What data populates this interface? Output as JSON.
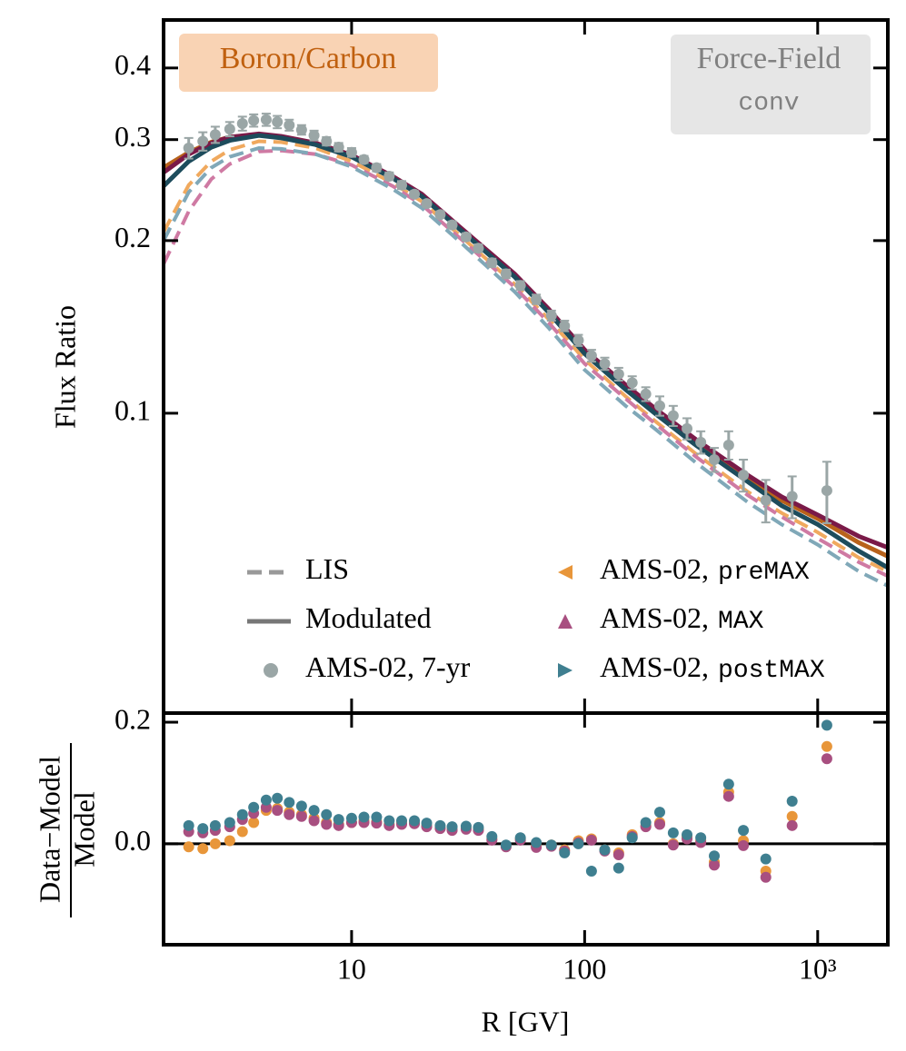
{
  "chart_data": {
    "type": "line",
    "annotations": {
      "label": "Boron/Carbon",
      "model": "Force-Field",
      "model_code": "conv"
    },
    "xlabel": "R [GV]",
    "ylabel": "Flux Ratio",
    "residual_ylabel": {
      "numerator": "Data−Model",
      "denominator": "Model"
    },
    "xscale": "log",
    "xlim": [
      1.56,
      2000
    ],
    "xticks": [
      10,
      100,
      {
        "value": 1000,
        "label": "10³"
      }
    ],
    "yscale": "log",
    "ylim": [
      0.03,
      0.485
    ],
    "yticks": [
      0.1,
      0.2,
      0.3,
      0.4
    ],
    "residual_ylim": [
      -0.166,
      0.215
    ],
    "residual_yticks": [
      {
        "value": 0,
        "label": "0.0"
      },
      {
        "value": 0.2,
        "label": "0.2"
      }
    ],
    "model_x": [
      1.56,
      2,
      2.5,
      3,
      4,
      5,
      7,
      10,
      15,
      20,
      30,
      50,
      70,
      100,
      150,
      200,
      300,
      500,
      700,
      1000,
      1500,
      2000
    ],
    "models": [
      {
        "style": "dashed",
        "color": "#f0a95e",
        "values": [
          0.207,
          0.25,
          0.275,
          0.288,
          0.298,
          0.297,
          0.29,
          0.275,
          0.252,
          0.234,
          0.202,
          0.168,
          0.146,
          0.124,
          0.107,
          0.097,
          0.085,
          0.073,
          0.067,
          0.062,
          0.056,
          0.053
        ]
      },
      {
        "style": "dashed",
        "color": "#cf7aa3",
        "values": [
          0.182,
          0.225,
          0.256,
          0.272,
          0.286,
          0.287,
          0.283,
          0.271,
          0.249,
          0.231,
          0.2,
          0.166,
          0.144,
          0.122,
          0.106,
          0.096,
          0.084,
          0.072,
          0.066,
          0.0605,
          0.055,
          0.052
        ]
      },
      {
        "style": "dashed",
        "color": "#80a8b8",
        "values": [
          0.2,
          0.243,
          0.268,
          0.28,
          0.29,
          0.289,
          0.283,
          0.269,
          0.246,
          0.228,
          0.197,
          0.163,
          0.141,
          0.119,
          0.103,
          0.094,
          0.082,
          0.07,
          0.064,
          0.059,
          0.053,
          0.05
        ]
      },
      {
        "style": "solid",
        "color": "#b8621b",
        "values": [
          0.268,
          0.285,
          0.297,
          0.303,
          0.306,
          0.303,
          0.295,
          0.281,
          0.258,
          0.24,
          0.208,
          0.174,
          0.151,
          0.128,
          0.111,
          0.101,
          0.089,
          0.077,
          0.0705,
          0.0655,
          0.0595,
          0.0563
        ]
      },
      {
        "style": "solid",
        "color": "#7a1a48",
        "values": [
          0.263,
          0.283,
          0.296,
          0.303,
          0.307,
          0.304,
          0.296,
          0.282,
          0.259,
          0.241,
          0.209,
          0.175,
          0.152,
          0.129,
          0.112,
          0.102,
          0.09,
          0.078,
          0.0715,
          0.0665,
          0.061,
          0.0583
        ]
      },
      {
        "style": "solid",
        "color": "#1d4c5c",
        "values": [
          0.249,
          0.275,
          0.291,
          0.299,
          0.305,
          0.302,
          0.294,
          0.28,
          0.257,
          0.239,
          0.207,
          0.173,
          0.15,
          0.127,
          0.11,
          0.1,
          0.088,
          0.076,
          0.069,
          0.064,
          0.0575,
          0.0538
        ]
      }
    ],
    "data": {
      "color": "#9aa6a6",
      "x": [
        2.0,
        2.3,
        2.6,
        3.0,
        3.4,
        3.8,
        4.3,
        4.8,
        5.4,
        6.1,
        6.9,
        7.8,
        8.8,
        10,
        11.3,
        12.8,
        14.5,
        16.4,
        18.6,
        21,
        24,
        27,
        31,
        35,
        40,
        46,
        53,
        62,
        72,
        82,
        94,
        107,
        122,
        140,
        160,
        183,
        210,
        240,
        275,
        315,
        360,
        415,
        480,
        599,
        777,
        1095
      ],
      "values": [
        0.29,
        0.298,
        0.306,
        0.313,
        0.32,
        0.324,
        0.325,
        0.322,
        0.318,
        0.312,
        0.305,
        0.298,
        0.291,
        0.285,
        0.277,
        0.268,
        0.259,
        0.25,
        0.241,
        0.232,
        0.222,
        0.213,
        0.203,
        0.194,
        0.183,
        0.175,
        0.167,
        0.158,
        0.148,
        0.142,
        0.134,
        0.126,
        0.122,
        0.117,
        0.113,
        0.108,
        0.103,
        0.099,
        0.094,
        0.089,
        0.083,
        0.088,
        0.078,
        0.0705,
        0.0716,
        0.0733
      ],
      "errors": [
        0.012,
        0.011,
        0.01,
        0.009,
        0.009,
        0.008,
        0.008,
        0.008,
        0.007,
        0.006,
        0.006,
        0.005,
        0.005,
        0.005,
        0.004,
        0.004,
        0.004,
        0.004,
        0.003,
        0.003,
        0.003,
        0.003,
        0.003,
        0.003,
        0.003,
        0.003,
        0.003,
        0.003,
        0.003,
        0.003,
        0.003,
        0.003,
        0.003,
        0.003,
        0.003,
        0.003,
        0.004,
        0.004,
        0.004,
        0.004,
        0.004,
        0.005,
        0.005,
        0.006,
        0.006,
        0.009
      ]
    },
    "residuals": [
      {
        "color": "#e8963a",
        "values": [
          -0.005,
          -0.008,
          0.0,
          0.005,
          0.02,
          0.035,
          0.055,
          0.058,
          0.052,
          0.048,
          0.042,
          0.035,
          0.032,
          0.035,
          0.038,
          0.036,
          0.032,
          0.035,
          0.036,
          0.03,
          0.026,
          0.024,
          0.026,
          0.024,
          0.008,
          -0.004,
          0.008,
          -0.004,
          -0.002,
          -0.01,
          0.005,
          0.008,
          -0.01,
          -0.015,
          0.015,
          0.03,
          0.035,
          0.0,
          0.012,
          0.005,
          -0.03,
          0.085,
          0.005,
          -0.045,
          0.045,
          0.16
        ]
      },
      {
        "color": "#a84f80",
        "values": [
          0.02,
          0.018,
          0.022,
          0.028,
          0.04,
          0.05,
          0.06,
          0.055,
          0.048,
          0.045,
          0.038,
          0.032,
          0.03,
          0.035,
          0.035,
          0.034,
          0.03,
          0.032,
          0.033,
          0.028,
          0.025,
          0.022,
          0.024,
          0.022,
          0.006,
          -0.005,
          0.006,
          -0.006,
          -0.004,
          -0.012,
          0.002,
          0.006,
          -0.012,
          -0.018,
          0.012,
          0.028,
          0.032,
          -0.002,
          0.008,
          0.002,
          -0.035,
          0.078,
          -0.003,
          -0.055,
          0.03,
          0.14
        ]
      },
      {
        "color": "#3f7f90",
        "values": [
          0.03,
          0.025,
          0.03,
          0.035,
          0.048,
          0.06,
          0.072,
          0.075,
          0.068,
          0.062,
          0.055,
          0.048,
          0.04,
          0.042,
          0.044,
          0.044,
          0.038,
          0.038,
          0.038,
          0.034,
          0.03,
          0.028,
          0.029,
          0.027,
          0.012,
          -0.002,
          0.01,
          0.002,
          -0.002,
          -0.015,
          0.0,
          -0.045,
          -0.01,
          -0.04,
          0.01,
          0.035,
          0.052,
          0.018,
          0.015,
          0.01,
          -0.02,
          0.098,
          0.022,
          -0.025,
          0.07,
          0.195
        ]
      }
    ],
    "legend": [
      {
        "label": "LIS",
        "style": "dashed",
        "color": "#999999"
      },
      {
        "label": "Modulated",
        "style": "solid",
        "color": "#777777"
      },
      {
        "label": "AMS-02, 7-yr",
        "marker": "circle",
        "color": "#9aa6a6"
      },
      {
        "label": "AMS-02,",
        "code": "preMAX",
        "marker": "triangle-left",
        "color": "#e8963a"
      },
      {
        "label": "AMS-02,",
        "code": "MAX",
        "marker": "triangle-up",
        "color": "#a84f80"
      },
      {
        "label": "AMS-02,",
        "code": "postMAX",
        "marker": "triangle-right",
        "color": "#3f7f90"
      }
    ]
  }
}
